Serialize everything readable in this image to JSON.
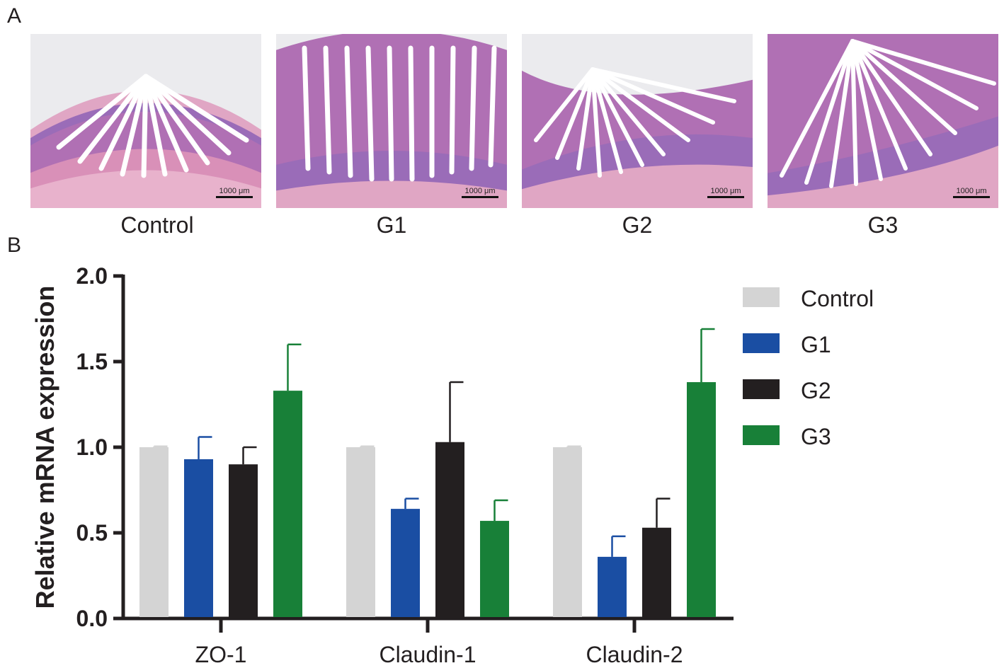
{
  "panel_a": {
    "letter": "A",
    "images": [
      {
        "label": "Control",
        "scale": "1000 μm"
      },
      {
        "label": "G1",
        "scale": "1000 μm"
      },
      {
        "label": "G2",
        "scale": "1000 μm"
      },
      {
        "label": "G3",
        "scale": "1000 μm"
      }
    ]
  },
  "panel_b": {
    "letter": "B"
  },
  "chart_data": {
    "type": "bar",
    "ylabel": "Relative mRNA expression",
    "ylim": [
      0,
      2.0
    ],
    "yticks": [
      "0.0",
      "0.5",
      "1.0",
      "1.5",
      "2.0"
    ],
    "categories": [
      "ZO-1",
      "Claudin-1",
      "Claudin-2"
    ],
    "series": [
      {
        "name": "Control",
        "color": "#d4d4d4",
        "values": [
          1.0,
          1.0,
          1.0
        ],
        "errors": [
          0.005,
          0.005,
          0.005
        ]
      },
      {
        "name": "G1",
        "color": "#1a4ea3",
        "values": [
          0.93,
          0.64,
          0.36
        ],
        "errors": [
          0.13,
          0.06,
          0.12
        ]
      },
      {
        "name": "G2",
        "color": "#231f20",
        "values": [
          0.9,
          1.03,
          0.53
        ],
        "errors": [
          0.1,
          0.35,
          0.17
        ]
      },
      {
        "name": "G3",
        "color": "#188038",
        "values": [
          1.33,
          0.57,
          1.38
        ],
        "errors": [
          0.27,
          0.12,
          0.31
        ]
      }
    ],
    "legend_position": "right",
    "grid": false
  }
}
